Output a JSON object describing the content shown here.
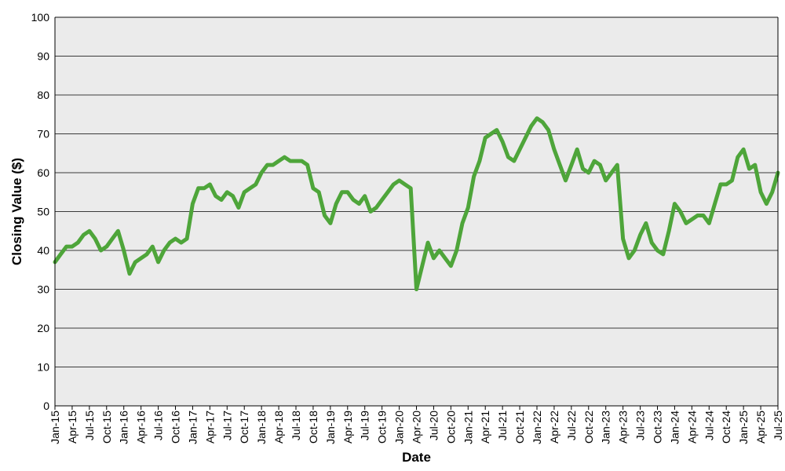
{
  "chart_data": {
    "type": "line",
    "title": "",
    "xlabel": "Date",
    "ylabel": "Closing Value ($)",
    "ylim": [
      0,
      100
    ],
    "yticks": [
      0,
      10,
      20,
      30,
      40,
      50,
      60,
      70,
      80,
      90,
      100
    ],
    "xlim": [
      "2015-01",
      "2025-07"
    ],
    "xticks": [
      "Jan-15",
      "Apr-15",
      "Jul-15",
      "Oct-15",
      "Jan-16",
      "Apr-16",
      "Jul-16",
      "Oct-16",
      "Jan-17",
      "Apr-17",
      "Jul-17",
      "Oct-17",
      "Jan-18",
      "Apr-18",
      "Jul-18",
      "Oct-18",
      "Jan-19",
      "Apr-19",
      "Jul-19",
      "Oct-19",
      "Jan-20",
      "Apr-20",
      "Jul-20",
      "Oct-20",
      "Jan-21",
      "Apr-21",
      "Jul-21",
      "Oct-21",
      "Jan-22",
      "Apr-22",
      "Jul-22",
      "Oct-22",
      "Jan-23",
      "Apr-23",
      "Jul-23",
      "Oct-23",
      "Jan-24",
      "Apr-24",
      "Jul-24",
      "Oct-24",
      "Jan-25",
      "Apr-25",
      "Jul-25"
    ],
    "grid": "horizontal",
    "legend": "none",
    "colors": {
      "series": "#4ea53a",
      "plot_bg": "#ebebeb",
      "grid": "#000000"
    },
    "series": [
      {
        "x": [
          "2015-01",
          "2015-02",
          "2015-03",
          "2015-04",
          "2015-05",
          "2015-06",
          "2015-07",
          "2015-08",
          "2015-09",
          "2015-10",
          "2015-11",
          "2015-12",
          "2016-01",
          "2016-02",
          "2016-03",
          "2016-04",
          "2016-05",
          "2016-06",
          "2016-07",
          "2016-08",
          "2016-09",
          "2016-10",
          "2016-11",
          "2016-12",
          "2017-01",
          "2017-02",
          "2017-03",
          "2017-04",
          "2017-05",
          "2017-06",
          "2017-07",
          "2017-08",
          "2017-09",
          "2017-10",
          "2017-11",
          "2017-12",
          "2018-01",
          "2018-02",
          "2018-03",
          "2018-04",
          "2018-05",
          "2018-06",
          "2018-07",
          "2018-08",
          "2018-09",
          "2018-10",
          "2018-11",
          "2018-12",
          "2019-01",
          "2019-02",
          "2019-03",
          "2019-04",
          "2019-05",
          "2019-06",
          "2019-07",
          "2019-08",
          "2019-09",
          "2019-10",
          "2019-11",
          "2019-12",
          "2020-01",
          "2020-02",
          "2020-03",
          "2020-04",
          "2020-05",
          "2020-06",
          "2020-07",
          "2020-08",
          "2020-09",
          "2020-10",
          "2020-11",
          "2020-12",
          "2021-01",
          "2021-02",
          "2021-03",
          "2021-04",
          "2021-05",
          "2021-06",
          "2021-07",
          "2021-08",
          "2021-09",
          "2021-10",
          "2021-11",
          "2021-12",
          "2022-01",
          "2022-02",
          "2022-03",
          "2022-04",
          "2022-05",
          "2022-06",
          "2022-07",
          "2022-08",
          "2022-09",
          "2022-10",
          "2022-11",
          "2022-12",
          "2023-01",
          "2023-02",
          "2023-03",
          "2023-04",
          "2023-05",
          "2023-06",
          "2023-07",
          "2023-08",
          "2023-09",
          "2023-10",
          "2023-11",
          "2023-12",
          "2024-01",
          "2024-02",
          "2024-03",
          "2024-04",
          "2024-05",
          "2024-06",
          "2024-07",
          "2024-08",
          "2024-09",
          "2024-10",
          "2024-11",
          "2024-12",
          "2025-01",
          "2025-02",
          "2025-03",
          "2025-04",
          "2025-05",
          "2025-06",
          "2025-07"
        ],
        "y": [
          37,
          39,
          41,
          41,
          42,
          44,
          45,
          43,
          40,
          41,
          43,
          45,
          40,
          34,
          37,
          38,
          39,
          41,
          37,
          40,
          42,
          43,
          42,
          43,
          52,
          56,
          56,
          57,
          54,
          53,
          55,
          54,
          51,
          55,
          56,
          57,
          60,
          62,
          62,
          63,
          64,
          63,
          63,
          63,
          62,
          56,
          55,
          49,
          47,
          52,
          55,
          55,
          53,
          52,
          54,
          50,
          51,
          53,
          55,
          57,
          58,
          57,
          56,
          30,
          36,
          42,
          38,
          40,
          38,
          36,
          40,
          47,
          51,
          59,
          63,
          69,
          70,
          71,
          68,
          64,
          63,
          66,
          69,
          72,
          74,
          73,
          71,
          66,
          62,
          58,
          62,
          66,
          61,
          60,
          63,
          62,
          58,
          60,
          62,
          43,
          38,
          40,
          44,
          47,
          42,
          40,
          39,
          45,
          52,
          50,
          47,
          48,
          49,
          49,
          47,
          52,
          57,
          57,
          58,
          64,
          66,
          61,
          62,
          55,
          52,
          55,
          60
        ]
      }
    ]
  }
}
